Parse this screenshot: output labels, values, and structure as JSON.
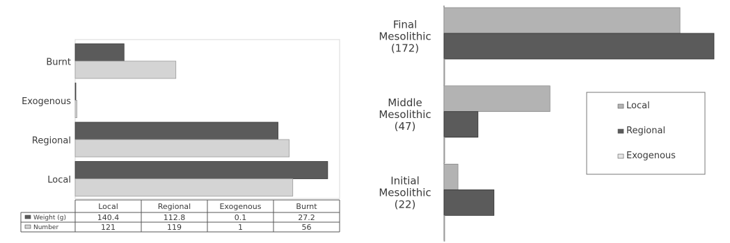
{
  "chart_data": [
    {
      "type": "bar",
      "orientation": "horizontal",
      "categories": [
        "Local",
        "Regional",
        "Exogenous",
        "Burnt"
      ],
      "series": [
        {
          "name": "Weight (g)",
          "legend_label": "Weight (g)",
          "values": [
            140.4,
            112.8,
            0.1,
            27.2
          ],
          "value_labels": [
            "140.4",
            "112.8",
            "0.1",
            "27.2"
          ],
          "color": "#5b5b5b"
        },
        {
          "name": "Number",
          "legend_label": "Number",
          "values": [
            121,
            119,
            1,
            56
          ],
          "value_labels": [
            "121",
            "119",
            "1",
            "56"
          ],
          "color": "#d4d4d4"
        }
      ],
      "xlim": [
        0,
        142
      ],
      "grid": false,
      "legend": "data-table"
    },
    {
      "type": "bar",
      "orientation": "horizontal",
      "categories": [
        {
          "lines": [
            "Final",
            "Mesolithic",
            "(172)"
          ]
        },
        {
          "lines": [
            "Middle",
            "Mesolithic",
            "(47)"
          ]
        },
        {
          "lines": [
            "Initial",
            "Mesolithic",
            "(22)"
          ]
        }
      ],
      "series": [
        {
          "name": "Local",
          "values": [
            118,
            53,
            7
          ],
          "color": "#b3b3b3"
        },
        {
          "name": "Regional",
          "values": [
            135,
            17,
            25
          ],
          "color": "#5b5b5b"
        },
        {
          "name": "Exogenous",
          "values": [
            0,
            0,
            0
          ],
          "color": "#e6e6e6"
        }
      ],
      "xlim": [
        0,
        140
      ],
      "grid": false,
      "legend": "right"
    }
  ]
}
